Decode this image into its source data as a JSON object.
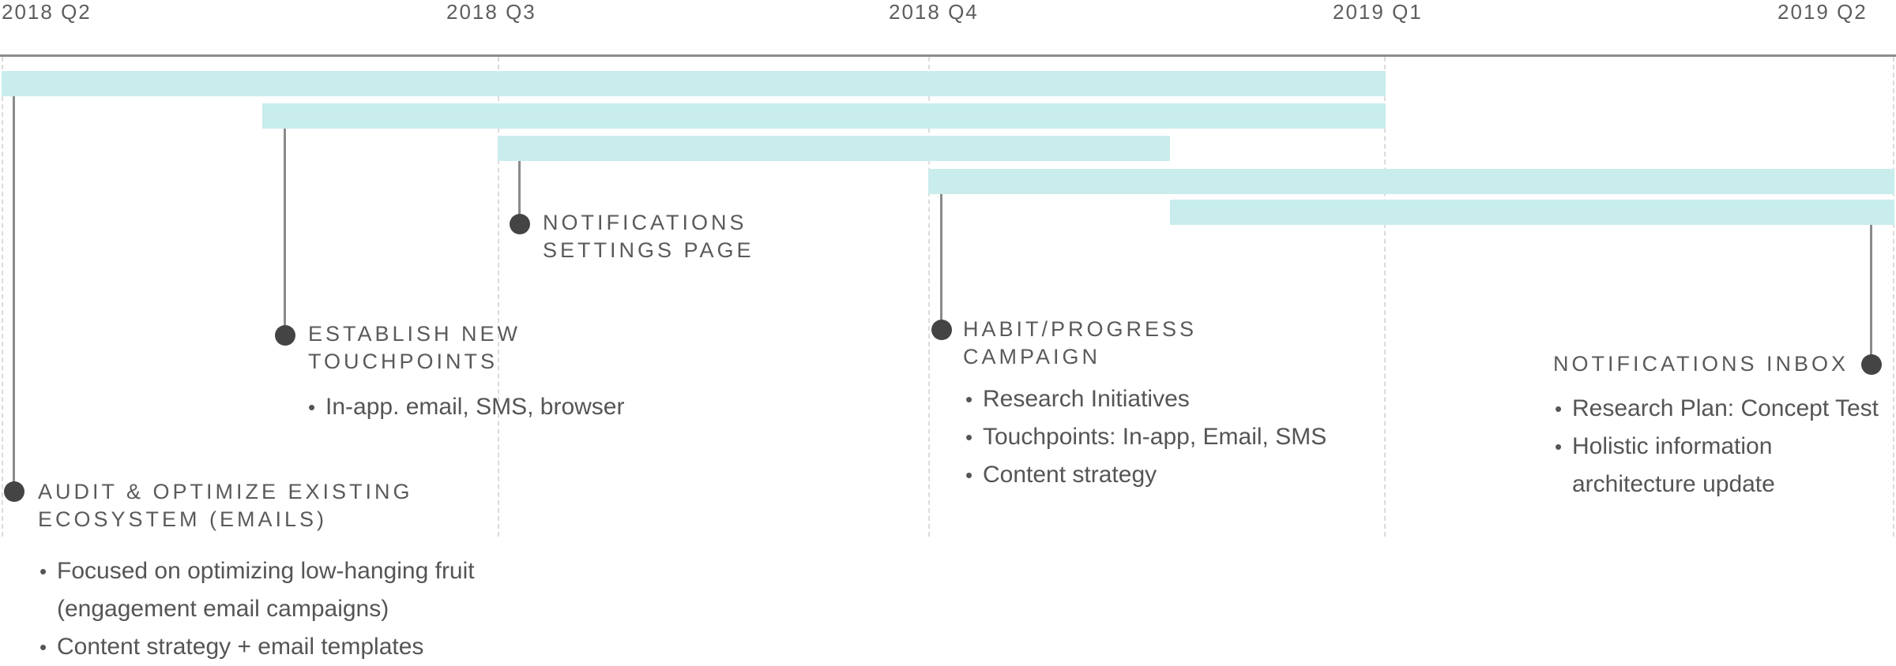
{
  "timeline": {
    "quarters": [
      "2018 Q2",
      "2018 Q3",
      "2018 Q4",
      "2019 Q1",
      "2019 Q2"
    ]
  },
  "milestones": [
    {
      "id": "audit",
      "title_lines": [
        "AUDIT & OPTIMIZE EXISTING",
        "ECOSYSTEM (EMAILS)"
      ],
      "bullets": [
        [
          "Focused on optimizing low-hanging fruit",
          "(engagement email campaigns)"
        ],
        [
          "Content strategy + email templates"
        ]
      ]
    },
    {
      "id": "touchpoints",
      "title_lines": [
        "ESTABLISH NEW",
        "TOUCHPOINTS"
      ],
      "bullets": [
        [
          "In-app. email, SMS, browser"
        ]
      ]
    },
    {
      "id": "settings",
      "title_lines": [
        "NOTIFICATIONS",
        "SETTINGS PAGE"
      ],
      "bullets": []
    },
    {
      "id": "habit",
      "title_lines": [
        "HABIT/PROGRESS",
        "CAMPAIGN"
      ],
      "bullets": [
        [
          "Research Initiatives"
        ],
        [
          "Touchpoints: In-app, Email, SMS"
        ],
        [
          "Content strategy"
        ]
      ]
    },
    {
      "id": "inbox",
      "title_lines": [
        "NOTIFICATIONS INBOX"
      ],
      "bullets": [
        [
          "Research Plan: Concept Test"
        ],
        [
          "Holistic information",
          "architecture update"
        ]
      ]
    }
  ],
  "colors": {
    "bar": "#c9ecec",
    "dot": "#444444",
    "stem": "#8a8a8a",
    "axis": "#8c8c8c",
    "grid": "#dcdcdc"
  }
}
